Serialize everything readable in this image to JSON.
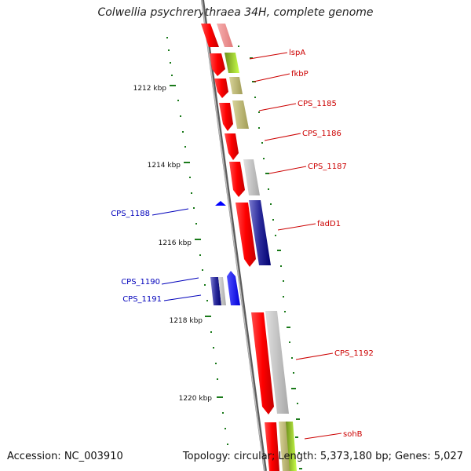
{
  "title": "Colwellia psychrerythraea 34H, complete genome",
  "footer": {
    "accession": "Accession: NC_003910",
    "stats": "Topology: circular; Length: 5,373,180 bp; Genes: 5,027"
  },
  "colors": {
    "forward_gene": "#ff0000",
    "reverse_gene": "#0000ff",
    "forward_label": "#cc0000",
    "reverse_label": "#0000bb",
    "tick": "#1a7a1a",
    "backbone": "#888888"
  },
  "ticks": [
    {
      "label": "1212 kbp"
    },
    {
      "label": "1214 kbp"
    },
    {
      "label": "1216 kbp"
    },
    {
      "label": "1218 kbp"
    },
    {
      "label": "1220 kbp"
    }
  ],
  "gene_labels_forward": [
    "lspA",
    "fkbP",
    "CPS_1185",
    "CPS_1186",
    "CPS_1187",
    "fadD1",
    "CPS_1192",
    "sohB"
  ],
  "gene_labels_reverse": [
    "CPS_1188",
    "CPS_1190",
    "CPS_1191"
  ]
}
